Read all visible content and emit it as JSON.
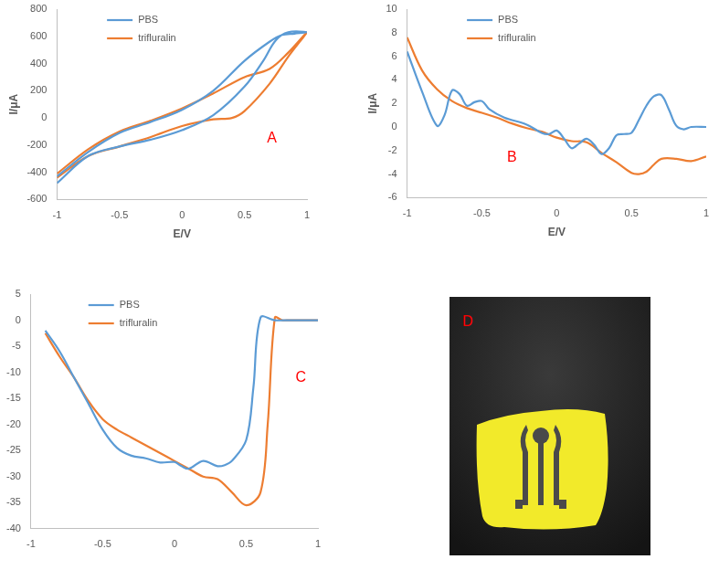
{
  "chart_data": [
    {
      "type": "line",
      "annotation": {
        "text": "A",
        "x": 0.72,
        "y": -150
      },
      "x_label": "E/V",
      "y_label": "I/μA",
      "xlim": [
        -1,
        1
      ],
      "xticks": [
        -1,
        -0.5,
        0,
        0.5,
        1
      ],
      "ylim": [
        -600,
        800
      ],
      "yticks": [
        -600,
        -400,
        -200,
        0,
        200,
        400,
        600,
        800
      ],
      "grid": false,
      "legend": "upper left",
      "series": [
        {
          "name": "PBS",
          "color": "#5b9bd5",
          "x": [
            -1,
            -0.75,
            -0.5,
            -0.25,
            0,
            0.25,
            0.5,
            0.65,
            0.75,
            0.85,
            1,
            0.9,
            0.8,
            0.7,
            0.5,
            0.25,
            0,
            -0.25,
            -0.5,
            -0.75,
            -1
          ],
          "values": [
            -480,
            -280,
            -210,
            -160,
            -90,
            20,
            230,
            420,
            570,
            630,
            630,
            620,
            610,
            560,
            420,
            200,
            60,
            -30,
            -110,
            -250,
            -430
          ]
        },
        {
          "name": "trifluralin",
          "color": "#ed7d31",
          "x": [
            -1,
            -0.75,
            -0.5,
            -0.25,
            0,
            0.25,
            0.4,
            0.5,
            0.7,
            0.85,
            1,
            0.85,
            0.7,
            0.5,
            0.25,
            0,
            -0.25,
            -0.5,
            -0.75,
            -1
          ],
          "values": [
            -440,
            -280,
            -210,
            -140,
            -60,
            -10,
            0,
            50,
            250,
            450,
            630,
            480,
            360,
            300,
            180,
            70,
            -20,
            -100,
            -230,
            -410
          ]
        }
      ]
    },
    {
      "type": "line",
      "annotation": {
        "text": "B",
        "x": -0.3,
        "y": -2.6
      },
      "x_label": "E/V",
      "y_label": "I/μA",
      "xlim": [
        -1,
        1
      ],
      "xticks": [
        -1,
        -0.5,
        0,
        0.5,
        1
      ],
      "ylim": [
        -6,
        10
      ],
      "yticks": [
        -6,
        -4,
        -2,
        0,
        2,
        4,
        6,
        8,
        10
      ],
      "grid": false,
      "legend": "upper left",
      "series": [
        {
          "name": "PBS",
          "color": "#5b9bd5",
          "x": [
            -1,
            -0.9,
            -0.8,
            -0.75,
            -0.7,
            -0.65,
            -0.6,
            -0.55,
            -0.5,
            -0.45,
            -0.35,
            -0.2,
            -0.1,
            -0.05,
            0,
            0.05,
            0.1,
            0.15,
            0.2,
            0.25,
            0.3,
            0.35,
            0.4,
            0.45,
            0.5,
            0.55,
            0.6,
            0.65,
            0.7,
            0.75,
            0.8,
            0.85,
            0.9,
            1
          ],
          "values": [
            6.4,
            3,
            0.1,
            1,
            3.1,
            2.8,
            1.8,
            2.1,
            2.2,
            1.5,
            0.8,
            0.2,
            -0.5,
            -0.6,
            -0.3,
            -1,
            -1.8,
            -1.4,
            -1,
            -1.5,
            -2.3,
            -1.8,
            -0.7,
            -0.6,
            -0.5,
            0.6,
            1.8,
            2.6,
            2.7,
            1.5,
            0.1,
            -0.2,
            0,
            0
          ]
        },
        {
          "name": "trifluralin",
          "color": "#ed7d31",
          "x": [
            -1,
            -0.9,
            -0.8,
            -0.7,
            -0.6,
            -0.5,
            -0.4,
            -0.3,
            -0.2,
            -0.1,
            0,
            0.1,
            0.2,
            0.3,
            0.4,
            0.5,
            0.55,
            0.6,
            0.65,
            0.7,
            0.8,
            0.9,
            1
          ],
          "values": [
            7.6,
            4.8,
            3.2,
            2.2,
            1.6,
            1.2,
            0.8,
            0.3,
            -0.1,
            -0.4,
            -0.9,
            -1.2,
            -1.3,
            -2.2,
            -3,
            -3.9,
            -4,
            -3.8,
            -3.2,
            -2.7,
            -2.7,
            -2.9,
            -2.5
          ]
        }
      ]
    },
    {
      "type": "line",
      "annotation": {
        "text": "C",
        "x": 0.88,
        "y": -11
      },
      "xlim": [
        -1,
        1
      ],
      "xticks": [
        -1,
        -0.5,
        0,
        0.5,
        1
      ],
      "ylim": [
        -40,
        5
      ],
      "yticks": [
        -40,
        -35,
        -30,
        -25,
        -20,
        -15,
        -10,
        -5,
        0,
        5
      ],
      "grid": false,
      "legend": "upper left",
      "series": [
        {
          "name": "PBS",
          "color": "#5b9bd5",
          "x": [
            -0.9,
            -0.8,
            -0.7,
            -0.6,
            -0.5,
            -0.4,
            -0.3,
            -0.2,
            -0.1,
            0,
            0.05,
            0.1,
            0.2,
            0.3,
            0.35,
            0.4,
            0.5,
            0.55,
            0.6,
            0.7,
            0.8,
            1
          ],
          "values": [
            -2,
            -6,
            -11,
            -16,
            -21,
            -24.5,
            -26,
            -26.5,
            -27.3,
            -27.2,
            -28,
            -28.5,
            -27,
            -28,
            -27.8,
            -27,
            -23,
            -13,
            0.5,
            0,
            0,
            0
          ]
        },
        {
          "name": "trifluralin",
          "color": "#ed7d31",
          "x": [
            -0.9,
            -0.8,
            -0.7,
            -0.6,
            -0.5,
            -0.4,
            -0.3,
            -0.2,
            -0.1,
            0,
            0.1,
            0.2,
            0.3,
            0.4,
            0.5,
            0.6,
            0.65,
            0.7,
            0.75,
            0.8,
            1
          ],
          "values": [
            -2.5,
            -7,
            -11,
            -15.5,
            -19,
            -21,
            -22.5,
            -24,
            -25.5,
            -27,
            -28.5,
            -30,
            -30.5,
            -33,
            -35.5,
            -33,
            -20,
            0.5,
            0,
            0,
            0
          ]
        }
      ]
    }
  ],
  "photo": {
    "label": "D"
  }
}
